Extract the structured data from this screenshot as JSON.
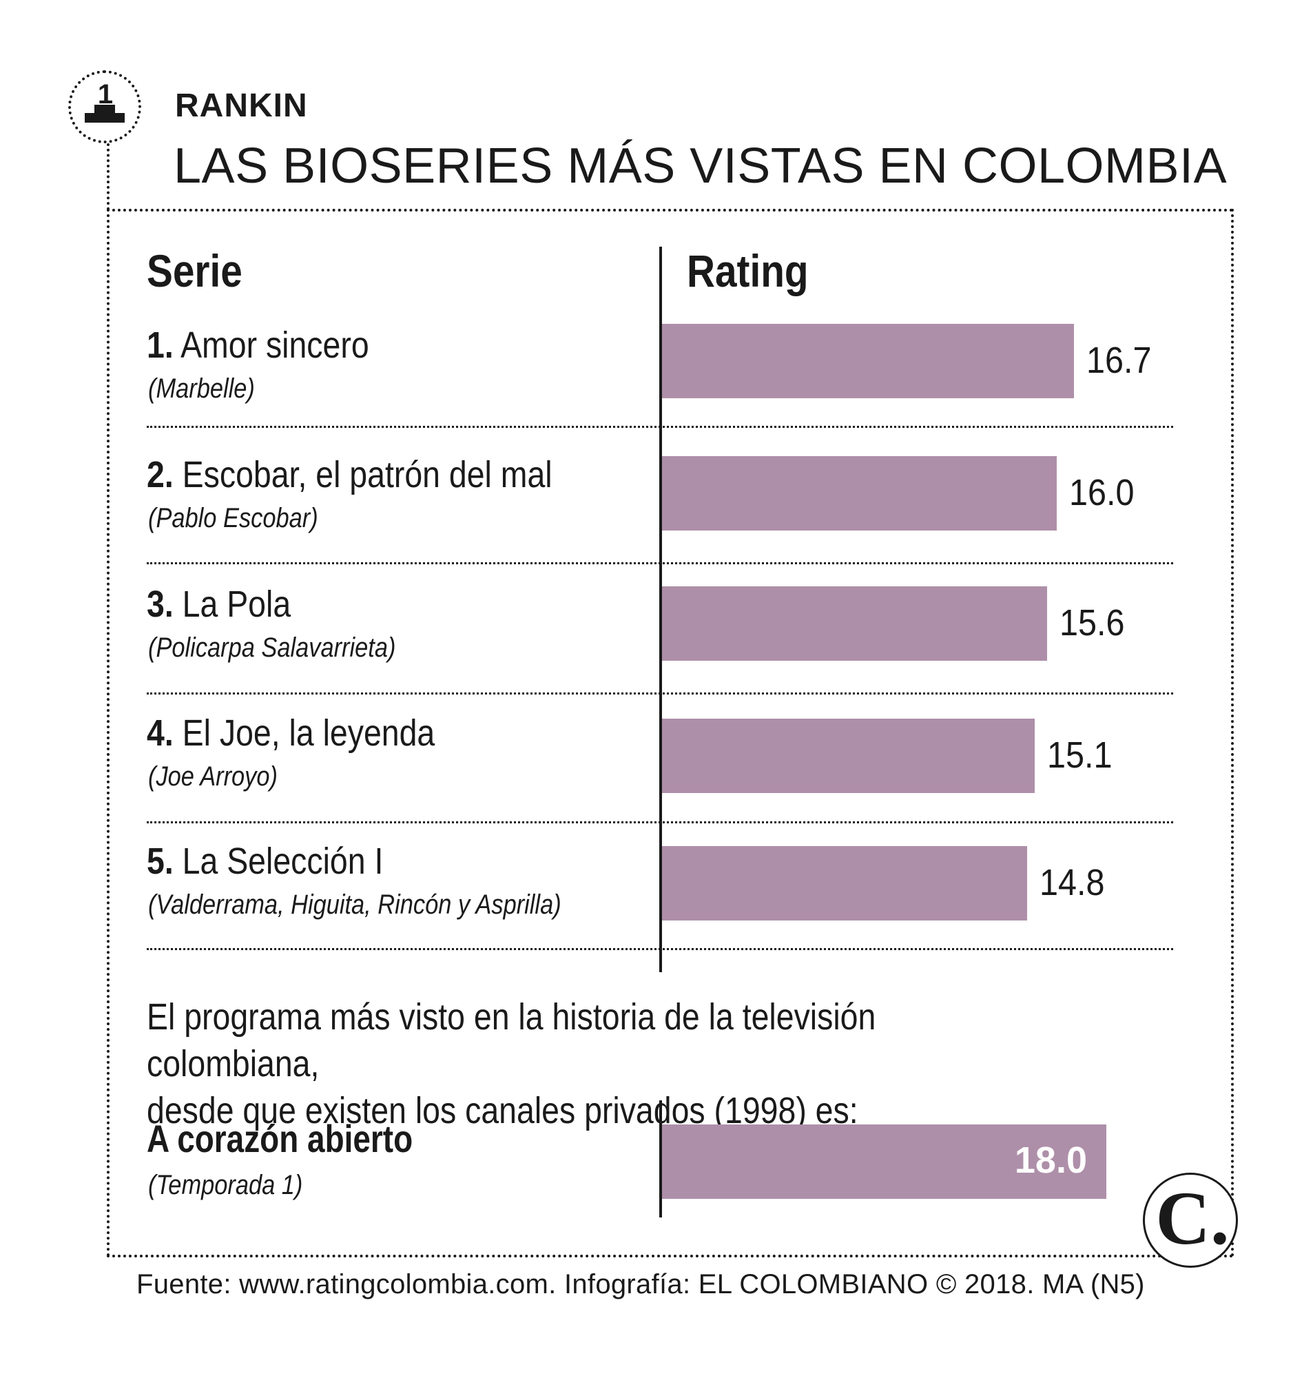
{
  "header": {
    "badge_number": "1",
    "kicker": "RANKIN",
    "title": "LAS BIOSERIES MÁS VISTAS EN COLOMBIA"
  },
  "columns": {
    "serie": "Serie",
    "rating": "Rating"
  },
  "chart_data": {
    "type": "bar",
    "orientation": "horizontal",
    "categories": [
      "Amor sincero",
      "Escobar, el patrón del mal",
      "La Pola",
      "El Joe, la leyenda",
      "La Selección I"
    ],
    "values": [
      16.7,
      16.0,
      15.6,
      15.1,
      14.8
    ],
    "value_labels": [
      "16.7",
      "16.0",
      "15.6",
      "15.1",
      "14.8"
    ],
    "title": "LAS BIOSERIES MÁS VISTAS EN COLOMBIA",
    "xlabel": "Rating",
    "ylabel": "Serie",
    "xlim": [
      0,
      18.0
    ],
    "bar_color": "#ae8fa9",
    "grid": false
  },
  "rows": [
    {
      "rank": "1.",
      "name": "Amor sincero",
      "subject": "(Marbelle)"
    },
    {
      "rank": "2.",
      "name": "Escobar, el patrón del mal",
      "subject": "(Pablo Escobar)"
    },
    {
      "rank": "3.",
      "name": "La Pola",
      "subject": "(Policarpa Salavarrieta)"
    },
    {
      "rank": "4.",
      "name": "El Joe, la leyenda",
      "subject": "(Joe Arroyo)"
    },
    {
      "rank": "5.",
      "name": "La Selección I",
      "subject": "(Valderrama, Higuita, Rincón y Asprilla)"
    }
  ],
  "note": {
    "line1": "El programa más visto en la historia de la televisión colombiana,",
    "line2": "desde que existen los canales privados (1998) es:"
  },
  "highlight": {
    "name": "A corazón abierto",
    "subject": "(Temporada 1)",
    "value": 18.0,
    "value_label": "18.0"
  },
  "logo": {
    "letter": "C."
  },
  "footer": {
    "source": "Fuente: www.ratingcolombia.com. Infografía: EL COLOMBIANO © 2018. MA (N5)"
  }
}
